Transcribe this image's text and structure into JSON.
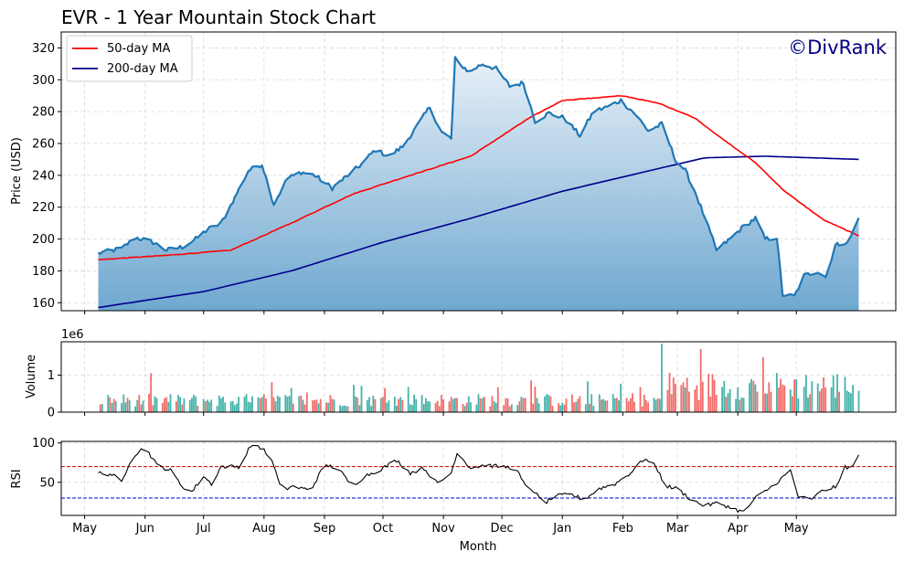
{
  "chart_data": [
    {
      "type": "area",
      "title": "EVR - 1 Year Mountain Stock Chart",
      "ylabel": "Price (USD)",
      "watermark": "©DivRank",
      "ylim": [
        155,
        330
      ],
      "yticks": [
        160,
        180,
        200,
        220,
        240,
        260,
        280,
        300,
        320
      ],
      "grid": true,
      "legend_position": "top-left",
      "legend": [
        "50-day MA",
        "200-day MA"
      ],
      "colors": {
        "price": "#1f77b4",
        "ma50": "#ff0000",
        "ma200": "#00008b",
        "fill_top": "#e8f0f8",
        "fill_bottom": "#6fa8d0",
        "watermark": "#000080"
      },
      "price_keypoints": [
        [
          "2024-05-08",
          191
        ],
        [
          "2024-05-20",
          194
        ],
        [
          "2024-05-27",
          201
        ],
        [
          "2024-06-05",
          198
        ],
        [
          "2024-06-12",
          193
        ],
        [
          "2024-06-20",
          195
        ],
        [
          "2024-06-27",
          200
        ],
        [
          "2024-07-03",
          206
        ],
        [
          "2024-07-10",
          210
        ],
        [
          "2024-07-17",
          226
        ],
        [
          "2024-07-24",
          243
        ],
        [
          "2024-07-31",
          247
        ],
        [
          "2024-08-06",
          222
        ],
        [
          "2024-08-13",
          238
        ],
        [
          "2024-08-20",
          242
        ],
        [
          "2024-08-27",
          240
        ],
        [
          "2024-09-05",
          232
        ],
        [
          "2024-09-12",
          239
        ],
        [
          "2024-09-20",
          247
        ],
        [
          "2024-09-27",
          256
        ],
        [
          "2024-10-04",
          252
        ],
        [
          "2024-10-11",
          258
        ],
        [
          "2024-10-18",
          270
        ],
        [
          "2024-10-25",
          283
        ],
        [
          "2024-10-31",
          267
        ],
        [
          "2024-11-05",
          263
        ],
        [
          "2024-11-07",
          313
        ],
        [
          "2024-11-14",
          305
        ],
        [
          "2024-11-21",
          310
        ],
        [
          "2024-11-28",
          307
        ],
        [
          "2024-12-05",
          296
        ],
        [
          "2024-12-12",
          298
        ],
        [
          "2024-12-18",
          274
        ],
        [
          "2024-12-25",
          279
        ],
        [
          "2025-01-02",
          276
        ],
        [
          "2025-01-10",
          265
        ],
        [
          "2025-01-17",
          280
        ],
        [
          "2025-01-24",
          283
        ],
        [
          "2025-01-31",
          287
        ],
        [
          "2025-02-07",
          279
        ],
        [
          "2025-02-14",
          268
        ],
        [
          "2025-02-21",
          272
        ],
        [
          "2025-02-28",
          250
        ],
        [
          "2025-03-05",
          243
        ],
        [
          "2025-03-10",
          230
        ],
        [
          "2025-03-17",
          207
        ],
        [
          "2025-03-21",
          193
        ],
        [
          "2025-03-28",
          200
        ],
        [
          "2025-04-04",
          208
        ],
        [
          "2025-04-10",
          213
        ],
        [
          "2025-04-15",
          200
        ],
        [
          "2025-04-21",
          201
        ],
        [
          "2025-04-24",
          165
        ],
        [
          "2025-04-30",
          164
        ],
        [
          "2025-05-05",
          177
        ],
        [
          "2025-05-12",
          180
        ],
        [
          "2025-05-16",
          176
        ],
        [
          "2025-05-21",
          196
        ],
        [
          "2025-05-28",
          199
        ],
        [
          "2025-06-02",
          213
        ]
      ],
      "ma50_keypoints": [
        [
          "2024-05-08",
          187
        ],
        [
          "2024-06-15",
          190
        ],
        [
          "2024-07-15",
          193
        ],
        [
          "2024-08-15",
          210
        ],
        [
          "2024-09-15",
          228
        ],
        [
          "2024-10-15",
          240
        ],
        [
          "2024-11-15",
          252
        ],
        [
          "2024-12-15",
          276
        ],
        [
          "2025-01-01",
          287
        ],
        [
          "2025-02-01",
          290
        ],
        [
          "2025-02-20",
          285
        ],
        [
          "2025-03-10",
          276
        ],
        [
          "2025-03-25",
          262
        ],
        [
          "2025-04-10",
          248
        ],
        [
          "2025-04-25",
          230
        ],
        [
          "2025-05-15",
          212
        ],
        [
          "2025-06-02",
          202
        ]
      ],
      "ma200_keypoints": [
        [
          "2024-05-08",
          157
        ],
        [
          "2024-07-01",
          167
        ],
        [
          "2024-08-15",
          180
        ],
        [
          "2024-10-01",
          198
        ],
        [
          "2024-11-15",
          213
        ],
        [
          "2025-01-01",
          230
        ],
        [
          "2025-02-15",
          243
        ],
        [
          "2025-03-15",
          251
        ],
        [
          "2025-04-15",
          252
        ],
        [
          "2025-06-02",
          250
        ]
      ]
    },
    {
      "type": "bar",
      "ylabel": "Volume",
      "offset_label": "1e6",
      "ylim": [
        0,
        1.9
      ],
      "yticks": [
        0,
        1
      ],
      "grid": true,
      "colors": {
        "up": "#26a69a",
        "down": "#ef5350"
      }
    },
    {
      "type": "line",
      "ylabel": "RSI",
      "xlabel": "Month",
      "ylim": [
        8,
        102
      ],
      "yticks": [
        50,
        100
      ],
      "overbought": 70,
      "oversold": 30,
      "grid": true,
      "colors": {
        "rsi": "#000000",
        "overbought": "#cc0000",
        "oversold": "#0000cc"
      },
      "rsi_keypoints": [
        [
          "2024-05-08",
          62
        ],
        [
          "2024-05-15",
          60
        ],
        [
          "2024-05-20",
          50
        ],
        [
          "2024-05-25",
          82
        ],
        [
          "2024-06-01",
          95
        ],
        [
          "2024-06-07",
          72
        ],
        [
          "2024-06-14",
          65
        ],
        [
          "2024-06-20",
          45
        ],
        [
          "2024-06-25",
          38
        ],
        [
          "2024-07-01",
          58
        ],
        [
          "2024-07-05",
          48
        ],
        [
          "2024-07-10",
          70
        ],
        [
          "2024-07-20",
          70
        ],
        [
          "2024-07-25",
          97
        ],
        [
          "2024-08-01",
          92
        ],
        [
          "2024-08-06",
          72
        ],
        [
          "2024-08-10",
          38
        ],
        [
          "2024-08-15",
          45
        ],
        [
          "2024-08-25",
          40
        ],
        [
          "2024-09-01",
          72
        ],
        [
          "2024-09-08",
          68
        ],
        [
          "2024-09-15",
          45
        ],
        [
          "2024-09-22",
          58
        ],
        [
          "2024-10-01",
          68
        ],
        [
          "2024-10-08",
          78
        ],
        [
          "2024-10-15",
          62
        ],
        [
          "2024-10-22",
          68
        ],
        [
          "2024-10-29",
          48
        ],
        [
          "2024-11-05",
          62
        ],
        [
          "2024-11-08",
          88
        ],
        [
          "2024-11-15",
          68
        ],
        [
          "2024-11-22",
          72
        ],
        [
          "2024-11-30",
          70
        ],
        [
          "2024-12-08",
          68
        ],
        [
          "2024-12-13",
          45
        ],
        [
          "2024-12-18",
          38
        ],
        [
          "2024-12-22",
          22
        ],
        [
          "2024-12-28",
          32
        ],
        [
          "2025-01-05",
          35
        ],
        [
          "2025-01-12",
          28
        ],
        [
          "2025-01-20",
          42
        ],
        [
          "2025-01-28",
          48
        ],
        [
          "2025-02-05",
          62
        ],
        [
          "2025-02-12",
          80
        ],
        [
          "2025-02-18",
          70
        ],
        [
          "2025-02-23",
          45
        ],
        [
          "2025-03-01",
          42
        ],
        [
          "2025-03-08",
          28
        ],
        [
          "2025-03-15",
          20
        ],
        [
          "2025-03-22",
          24
        ],
        [
          "2025-03-28",
          18
        ],
        [
          "2025-04-04",
          12
        ],
        [
          "2025-04-10",
          30
        ],
        [
          "2025-04-17",
          42
        ],
        [
          "2025-04-22",
          52
        ],
        [
          "2025-04-28",
          65
        ],
        [
          "2025-05-02",
          32
        ],
        [
          "2025-05-08",
          28
        ],
        [
          "2025-05-15",
          40
        ],
        [
          "2025-05-22",
          45
        ],
        [
          "2025-05-26",
          70
        ],
        [
          "2025-05-29",
          68
        ],
        [
          "2025-06-02",
          83
        ]
      ]
    }
  ],
  "x_axis": {
    "xlabel": "Month",
    "tick_labels": [
      "May",
      "Jun",
      "Jul",
      "Aug",
      "Sep",
      "Oct",
      "Nov",
      "Dec",
      "Jan",
      "Feb",
      "Mar",
      "Apr",
      "May"
    ],
    "tick_dates": [
      "2024-05-01",
      "2024-06-01",
      "2024-07-01",
      "2024-08-01",
      "2024-09-01",
      "2024-10-01",
      "2024-11-01",
      "2024-12-01",
      "2025-01-01",
      "2025-02-01",
      "2025-03-01",
      "2025-04-01",
      "2025-05-01"
    ],
    "range": [
      "2024-04-19",
      "2025-06-21"
    ]
  }
}
